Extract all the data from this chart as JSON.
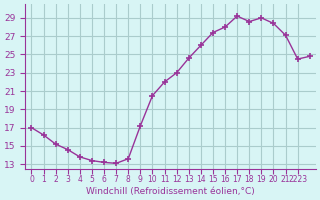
{
  "x": [
    0,
    1,
    2,
    3,
    4,
    5,
    6,
    7,
    8,
    9,
    10,
    11,
    12,
    13,
    14,
    15,
    16,
    17,
    18,
    19,
    20,
    21,
    22,
    23
  ],
  "y": [
    17.0,
    16.2,
    15.2,
    14.6,
    13.8,
    13.4,
    13.2,
    13.1,
    13.6,
    17.2,
    20.5,
    22.0,
    23.0,
    24.6,
    26.0,
    27.4,
    28.0,
    29.2,
    28.6,
    29.0,
    28.4,
    27.1,
    24.5,
    24.8
  ],
  "line_color": "#993399",
  "marker": "+",
  "background_color": "#d8f5f5",
  "grid_color": "#aacccc",
  "tick_color": "#993399",
  "xlabel": "Windchill (Refroidissement éolien,°C)",
  "xlabel_color": "#993399",
  "yticks": [
    13,
    15,
    17,
    19,
    21,
    23,
    25,
    27,
    29
  ],
  "ylim": [
    12.5,
    30.5
  ],
  "xlim": [
    -0.5,
    23.5
  ],
  "xtick_positions": [
    0,
    1,
    2,
    3,
    4,
    5,
    6,
    7,
    8,
    9,
    10,
    11,
    12,
    13,
    14,
    15,
    16,
    17,
    18,
    19,
    20,
    21,
    22
  ],
  "xtick_labels": [
    "0",
    "1",
    "2",
    "3",
    "4",
    "5",
    "6",
    "7",
    "8",
    "9",
    "10",
    "11",
    "12",
    "13",
    "14",
    "15",
    "16",
    "17",
    "18",
    "19",
    "20",
    "21",
    "2223"
  ],
  "figsize": [
    3.2,
    2.0
  ],
  "dpi": 100
}
